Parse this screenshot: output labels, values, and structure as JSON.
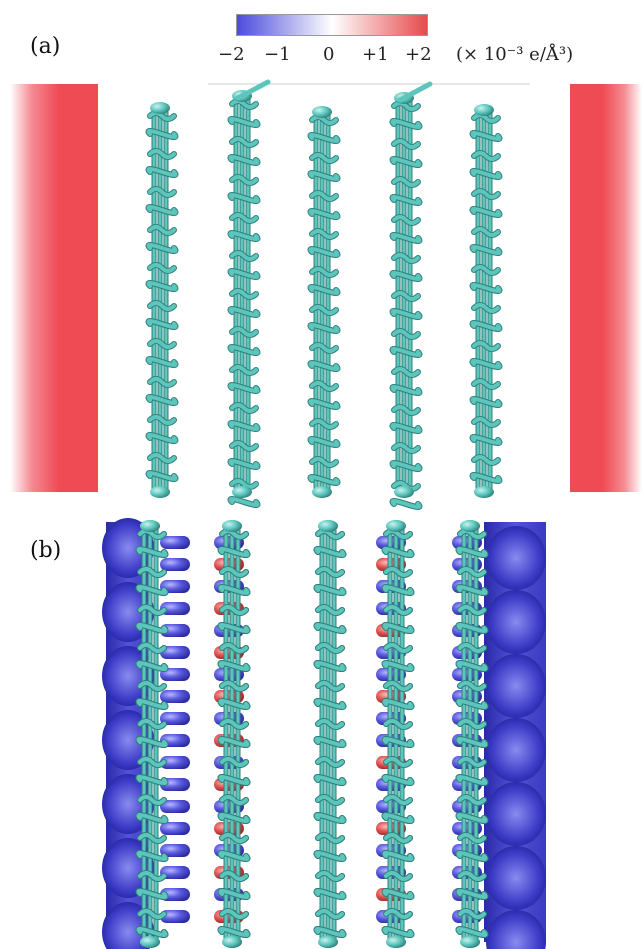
{
  "panels": {
    "a_label": "(a)",
    "b_label": "(b)"
  },
  "colorbar": {
    "ticks": [
      "−2",
      "−1",
      "0",
      "+1",
      "+2"
    ],
    "unit": "(× 10⁻³ e/Å³)",
    "colors": {
      "negative": "#4b4bdc",
      "zero": "#ffffff",
      "positive": "#e64b4b"
    }
  },
  "colors": {
    "chain": "#5cc6bd",
    "chain_dark": "#2f7f79",
    "density_positive": "#ef4b55",
    "density_negative": "#4e4ed6"
  }
}
